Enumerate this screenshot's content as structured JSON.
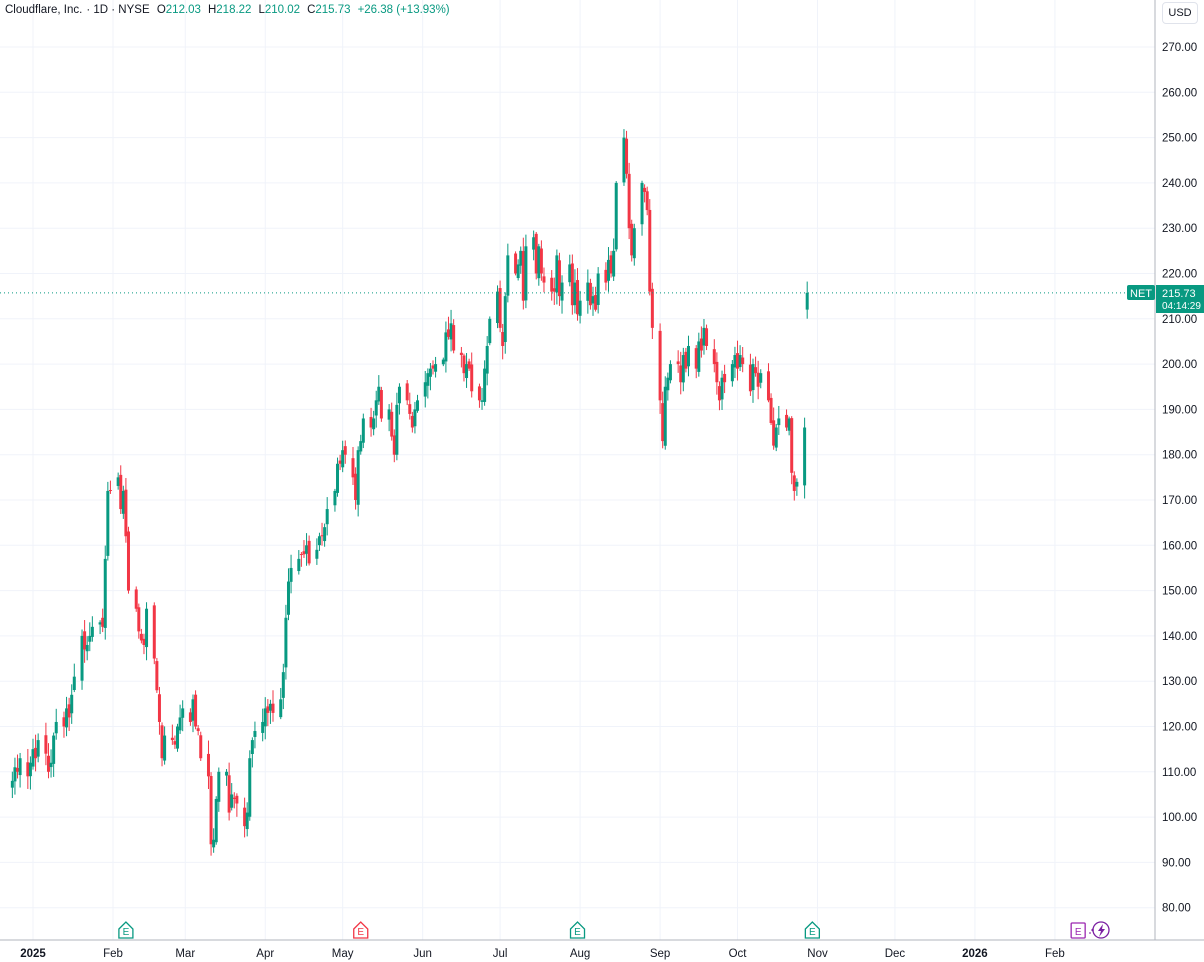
{
  "header": {
    "symbol_name": "Cloudflare, Inc.",
    "interval_exchange": "· 1D · NYSE",
    "open_label": "O",
    "open": "212.03",
    "high_label": "H",
    "high": "218.22",
    "low_label": "L",
    "low": "210.02",
    "close_label": "C",
    "close": "215.73",
    "change": "+26.38 (+13.93%)"
  },
  "currency_button": "USD",
  "price_tag": {
    "ticker": "NET",
    "price": "215.73",
    "countdown": "04:14:29"
  },
  "colors": {
    "up": "#089981",
    "down": "#f23645",
    "grid": "#f0f3fa",
    "axis_text": "#131722",
    "earnings": "#089981",
    "earnings_upcoming": "#9c27b0"
  },
  "chart_data": {
    "type": "candlestick",
    "x_axis_labels": [
      "2025",
      "Feb",
      "Mar",
      "Apr",
      "May",
      "Jun",
      "Jul",
      "Aug",
      "Sep",
      "Oct",
      "Nov",
      "Dec",
      "2026",
      "Feb"
    ],
    "y_ticks": [
      "80.00",
      "90.00",
      "100.00",
      "110.00",
      "120.00",
      "130.00",
      "140.00",
      "150.00",
      "160.00",
      "170.00",
      "180.00",
      "190.00",
      "200.00",
      "210.00",
      "220.00",
      "230.00",
      "240.00",
      "250.00",
      "260.00",
      "270.00"
    ],
    "ylim": [
      76,
      274
    ],
    "grid": true,
    "last_price": 215.73,
    "earnings_markers": [
      {
        "label": "E",
        "date": "2025-02-06",
        "status": "beat"
      },
      {
        "label": "E",
        "date": "2025-05-08",
        "status": "miss"
      },
      {
        "label": "E",
        "date": "2025-07-31",
        "status": "beat"
      },
      {
        "label": "E",
        "date": "2025-10-30",
        "status": "beat"
      },
      {
        "label": "E",
        "date": "2026-02-10",
        "status": "upcoming"
      }
    ],
    "x_start": "2024-12-24",
    "closes": [
      108,
      111,
      110,
      113,
      109,
      112,
      115,
      113,
      117,
      114,
      110,
      112,
      118,
      121,
      120,
      124,
      122,
      127,
      131,
      140,
      137,
      138,
      140,
      142,
      143,
      142,
      157,
      172,
      172,
      175,
      168,
      172,
      162,
      150,
      146,
      141,
      139,
      138,
      146,
      135,
      128,
      121,
      113,
      118,
      117,
      116,
      120,
      122,
      124,
      121,
      126,
      120,
      119,
      113,
      109,
      94,
      95,
      104,
      110,
      110,
      101,
      105,
      104,
      103,
      98,
      101,
      113,
      117,
      119,
      121,
      124,
      123,
      125,
      123,
      126,
      132,
      144,
      152,
      155,
      157,
      158,
      158,
      160,
      156,
      159,
      162,
      162,
      164,
      168,
      172,
      178,
      178,
      181,
      180,
      175,
      170,
      181,
      183,
      188,
      186,
      188,
      192,
      195,
      188,
      190,
      184,
      180,
      191,
      195,
      192,
      189,
      186,
      190,
      192,
      196,
      198,
      199,
      199,
      200,
      201,
      207,
      206,
      209,
      203,
      202,
      198,
      200,
      199,
      194,
      192,
      192,
      199,
      204,
      210,
      216,
      208,
      204,
      215,
      224,
      220,
      222,
      225,
      214,
      226,
      228,
      220,
      226,
      220,
      218,
      216,
      216,
      224,
      215,
      218,
      222,
      213,
      218,
      211,
      214,
      218,
      213,
      215,
      212,
      220,
      218,
      223,
      220,
      225,
      240,
      250,
      242,
      230,
      224,
      230,
      240,
      238,
      234,
      216,
      208,
      192,
      183,
      195,
      197,
      200,
      200,
      196,
      202,
      199,
      204,
      199,
      205,
      203,
      208,
      204,
      200,
      196,
      192,
      197,
      196,
      200,
      202,
      199,
      202,
      200,
      194,
      200,
      198,
      195,
      198,
      192,
      187,
      182,
      186,
      188,
      186,
      188,
      176,
      172,
      174,
      186,
      215.73
    ],
    "candles": [
      {
        "o": 212.03,
        "h": 218.22,
        "l": 210.02,
        "c": 215.73,
        "note": "last bar"
      }
    ]
  }
}
